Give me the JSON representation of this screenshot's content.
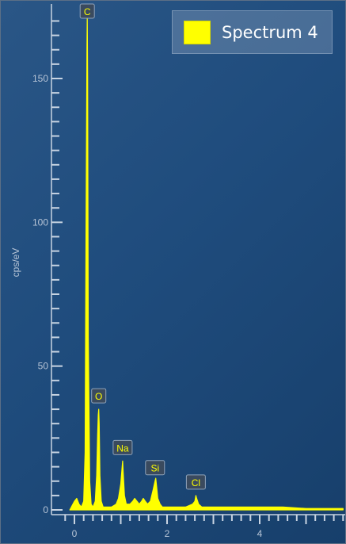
{
  "chart_data": {
    "type": "line",
    "title": "",
    "xlabel": "",
    "ylabel": "cps/eV",
    "xlim": [
      -0.2,
      5.8
    ],
    "ylim": [
      -2,
      175
    ],
    "x_ticks": [
      0,
      2,
      4
    ],
    "y_ticks": [
      0,
      50,
      100,
      150
    ],
    "legend": {
      "position": "top-right",
      "entries": [
        "Spectrum 4"
      ]
    },
    "colors": {
      "series": "#ffff00",
      "background": "#1f4c7d",
      "axis": "#c8d4e2",
      "label_box": "#3a4a5e"
    },
    "series": [
      {
        "name": "Spectrum 4",
        "x": [
          -0.1,
          0.0,
          0.05,
          0.1,
          0.15,
          0.2,
          0.23,
          0.25,
          0.27,
          0.277,
          0.285,
          0.3,
          0.33,
          0.36,
          0.4,
          0.45,
          0.48,
          0.5,
          0.515,
          0.525,
          0.535,
          0.55,
          0.58,
          0.62,
          0.7,
          0.8,
          0.9,
          0.95,
          1.0,
          1.03,
          1.041,
          1.05,
          1.08,
          1.12,
          1.2,
          1.26,
          1.3,
          1.35,
          1.4,
          1.45,
          1.487,
          1.53,
          1.58,
          1.64,
          1.7,
          1.74,
          1.755,
          1.77,
          1.8,
          1.85,
          1.9,
          2.0,
          2.2,
          2.4,
          2.55,
          2.6,
          2.622,
          2.64,
          2.68,
          2.75,
          2.9,
          3.2,
          3.5,
          4.0,
          4.5,
          5.0,
          5.5,
          5.8
        ],
        "y": [
          0,
          3,
          4,
          2,
          1,
          3,
          20,
          95,
          160,
          172,
          150,
          60,
          10,
          2,
          1,
          3,
          12,
          26,
          33,
          35,
          30,
          12,
          3,
          1,
          1,
          1,
          2,
          4,
          9,
          15,
          17,
          14,
          5,
          2,
          2,
          3,
          4,
          3,
          2,
          3,
          4,
          3,
          2,
          3,
          7,
          10,
          11,
          9,
          4,
          2,
          1,
          1,
          1,
          1,
          2,
          3,
          5,
          4,
          2,
          1,
          1,
          1,
          1,
          1,
          1,
          0.5,
          0.5,
          0.5
        ]
      }
    ],
    "peak_labels": [
      {
        "label": "C",
        "x": 0.277
      },
      {
        "label": "O",
        "x": 0.525
      },
      {
        "label": "Na",
        "x": 1.041
      },
      {
        "label": "Si",
        "x": 1.74
      },
      {
        "label": "Cl",
        "x": 2.622
      }
    ]
  }
}
